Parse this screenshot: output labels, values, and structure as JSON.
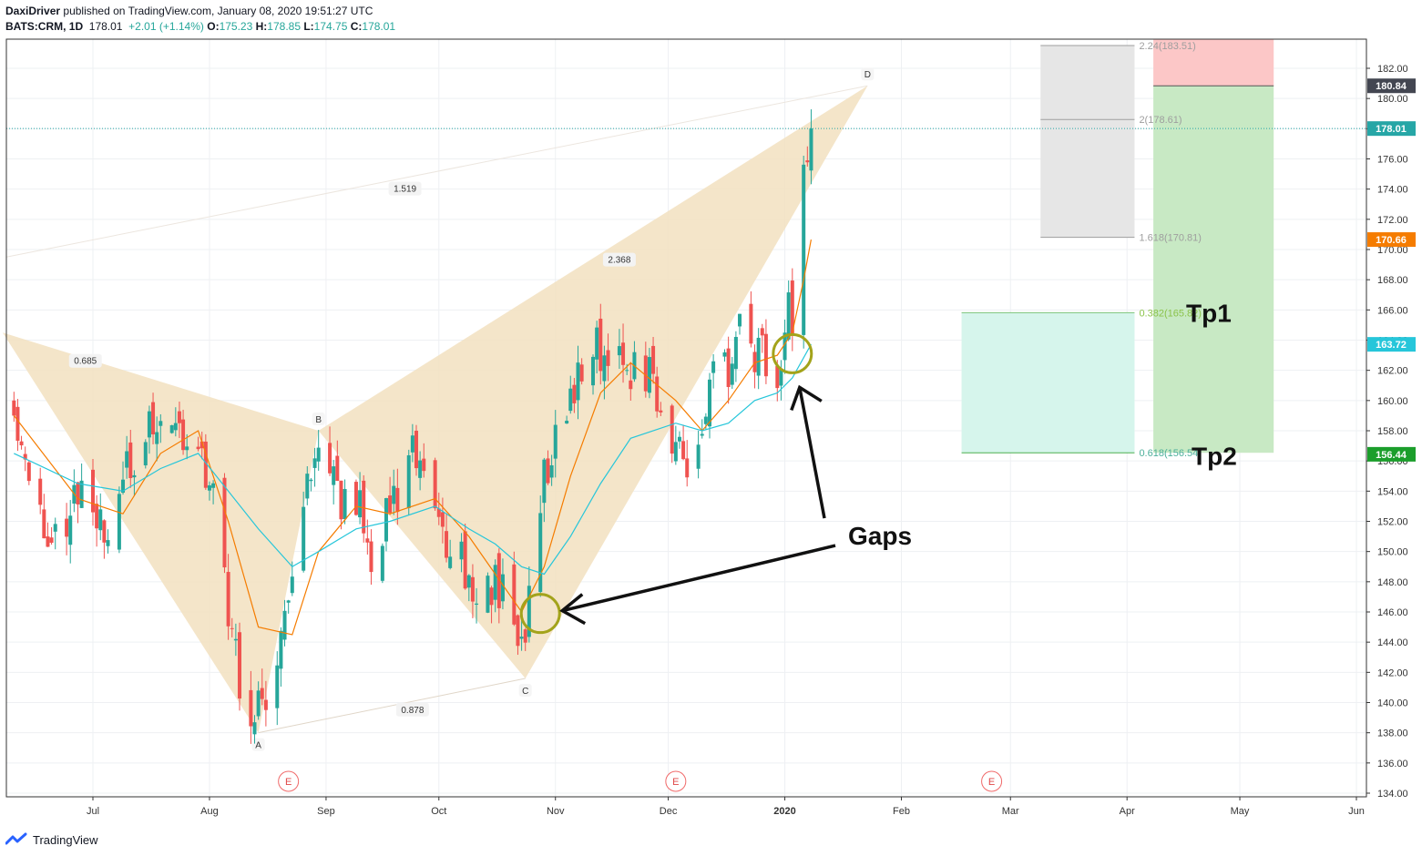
{
  "header": {
    "author": "DaxiDriver",
    "published_text": "published on TradingView.com, January 08, 2020 19:51:27 UTC",
    "symbol": "BATS:CRM, 1D",
    "last": "178.01",
    "change": "+2.01 (+1.14%)",
    "o_label": "O:",
    "o": "175.23",
    "h_label": "H:",
    "h": "178.85",
    "l_label": "L:",
    "l": "174.75",
    "c_label": "C:",
    "c": "178.01"
  },
  "footer": {
    "brand": "TradingView"
  },
  "colors": {
    "up": "#26a69a",
    "down": "#ef5350",
    "ma_fast": "#f57c00",
    "ma_slow": "#26c6da",
    "pattern_fill": "#f2e1c0",
    "grid": "#eef0f3",
    "gap_circle": "#a3a31b"
  },
  "chart_data": {
    "type": "candlestick",
    "symbol": "BATS:CRM",
    "interval": "1D",
    "ylim": [
      134,
      183
    ],
    "y_ticks": [
      134,
      136,
      138,
      140,
      142,
      144,
      146,
      148,
      150,
      152,
      154,
      156,
      158,
      160,
      162,
      164,
      166,
      168,
      170,
      172,
      174,
      176,
      178,
      180,
      182
    ],
    "x_labels": [
      {
        "label": "Jul",
        "date": "2019-07-01"
      },
      {
        "label": "Aug",
        "date": "2019-08-01"
      },
      {
        "label": "Sep",
        "date": "2019-09-01"
      },
      {
        "label": "Oct",
        "date": "2019-10-01"
      },
      {
        "label": "Nov",
        "date": "2019-11-01"
      },
      {
        "label": "Dec",
        "date": "2019-12-01"
      },
      {
        "label": "2020",
        "date": "2020-01-01"
      },
      {
        "label": "Feb",
        "date": "2020-02-01"
      },
      {
        "label": "Mar",
        "date": "2020-03-01"
      },
      {
        "label": "Apr",
        "date": "2020-04-01"
      },
      {
        "label": "May",
        "date": "2020-05-01"
      },
      {
        "label": "Jun",
        "date": "2020-06-01"
      }
    ],
    "close_path": [
      [
        "2019-06-10",
        160.8
      ],
      [
        "2019-06-14",
        153.5
      ],
      [
        "2019-06-20",
        151.0
      ],
      [
        "2019-06-27",
        154.0
      ],
      [
        "2019-07-03",
        151.0
      ],
      [
        "2019-07-09",
        154.5
      ],
      [
        "2019-07-15",
        157.0
      ],
      [
        "2019-07-19",
        159.5
      ],
      [
        "2019-07-24",
        158.0
      ],
      [
        "2019-07-29",
        157.5
      ],
      [
        "2019-08-02",
        153.0
      ],
      [
        "2019-08-06",
        146.0
      ],
      [
        "2019-08-09",
        142.0
      ],
      [
        "2019-08-14",
        139.0
      ],
      [
        "2019-08-19",
        144.0
      ],
      [
        "2019-08-23",
        147.0
      ],
      [
        "2019-08-26",
        154.0
      ],
      [
        "2019-08-30",
        155.5
      ],
      [
        "2019-09-04",
        154.0
      ],
      [
        "2019-09-09",
        153.5
      ],
      [
        "2019-09-13",
        150.0
      ],
      [
        "2019-09-18",
        153.0
      ],
      [
        "2019-09-24",
        156.0
      ],
      [
        "2019-09-30",
        153.0
      ],
      [
        "2019-10-04",
        150.5
      ],
      [
        "2019-10-09",
        149.0
      ],
      [
        "2019-10-11",
        146.0
      ],
      [
        "2019-10-16",
        148.5
      ],
      [
        "2019-10-21",
        146.0
      ],
      [
        "2019-10-23",
        143.0
      ],
      [
        "2019-10-25",
        147.0
      ],
      [
        "2019-10-29",
        155.0
      ],
      [
        "2019-11-01",
        158.0
      ],
      [
        "2019-11-05",
        160.0
      ],
      [
        "2019-11-08",
        163.0
      ],
      [
        "2019-11-13",
        163.5
      ],
      [
        "2019-11-18",
        163.0
      ],
      [
        "2019-11-21",
        162.5
      ],
      [
        "2019-11-26",
        161.5
      ],
      [
        "2019-12-03",
        157.0
      ],
      [
        "2019-12-06",
        156.0
      ],
      [
        "2019-12-10",
        157.0
      ],
      [
        "2019-12-13",
        161.5
      ],
      [
        "2019-12-17",
        162.5
      ],
      [
        "2019-12-20",
        164.0
      ],
      [
        "2019-12-24",
        163.0
      ],
      [
        "2019-12-27",
        163.2
      ],
      [
        "2019-12-30",
        162.5
      ],
      [
        "2020-01-02",
        166.0
      ],
      [
        "2020-01-03",
        165.5
      ],
      [
        "2020-01-06",
        174.0
      ],
      [
        "2020-01-07",
        176.0
      ],
      [
        "2020-01-08",
        178.01
      ]
    ],
    "moving_averages": [
      {
        "values": [
          [
            "2019-06-10",
            159.0
          ],
          [
            "2019-06-27",
            153.5
          ],
          [
            "2019-07-09",
            152.5
          ],
          [
            "2019-07-19",
            156.5
          ],
          [
            "2019-07-29",
            158.0
          ],
          [
            "2019-08-06",
            152.0
          ],
          [
            "2019-08-14",
            145.0
          ],
          [
            "2019-08-23",
            144.5
          ],
          [
            "2019-08-30",
            150.0
          ],
          [
            "2019-09-09",
            153.0
          ],
          [
            "2019-09-18",
            152.5
          ],
          [
            "2019-09-30",
            153.5
          ],
          [
            "2019-10-09",
            151.0
          ],
          [
            "2019-10-16",
            148.5
          ],
          [
            "2019-10-23",
            146.0
          ],
          [
            "2019-10-29",
            149.0
          ],
          [
            "2019-11-05",
            155.0
          ],
          [
            "2019-11-13",
            160.5
          ],
          [
            "2019-11-21",
            162.5
          ],
          [
            "2019-12-03",
            160.0
          ],
          [
            "2019-12-10",
            158.0
          ],
          [
            "2019-12-17",
            160.0
          ],
          [
            "2019-12-24",
            162.5
          ],
          [
            "2019-12-30",
            163.0
          ],
          [
            "2020-01-03",
            164.5
          ],
          [
            "2020-01-06",
            168.0
          ],
          [
            "2020-01-08",
            170.66
          ]
        ]
      },
      {
        "values": [
          [
            "2019-06-10",
            156.5
          ],
          [
            "2019-06-27",
            154.5
          ],
          [
            "2019-07-09",
            154.0
          ],
          [
            "2019-07-19",
            155.5
          ],
          [
            "2019-07-29",
            156.5
          ],
          [
            "2019-08-06",
            154.0
          ],
          [
            "2019-08-14",
            151.5
          ],
          [
            "2019-08-23",
            149.0
          ],
          [
            "2019-08-30",
            150.0
          ],
          [
            "2019-09-09",
            151.5
          ],
          [
            "2019-09-18",
            152.0
          ],
          [
            "2019-09-30",
            153.0
          ],
          [
            "2019-10-09",
            151.5
          ],
          [
            "2019-10-16",
            150.5
          ],
          [
            "2019-10-23",
            149.0
          ],
          [
            "2019-10-29",
            148.5
          ],
          [
            "2019-11-05",
            151.0
          ],
          [
            "2019-11-13",
            154.5
          ],
          [
            "2019-11-21",
            157.5
          ],
          [
            "2019-12-03",
            158.5
          ],
          [
            "2019-12-10",
            158.0
          ],
          [
            "2019-12-17",
            158.5
          ],
          [
            "2019-12-24",
            160.0
          ],
          [
            "2019-12-30",
            160.5
          ],
          [
            "2020-01-03",
            161.5
          ],
          [
            "2020-01-08",
            163.72
          ]
        ]
      }
    ],
    "pattern": {
      "points": [
        {
          "label": "",
          "date": "2019-06-07",
          "price": 164.5
        },
        {
          "label": "A",
          "date": "2019-08-14",
          "price": 138.0
        },
        {
          "label": "B",
          "date": "2019-08-30",
          "price": 158.0
        },
        {
          "label": "C",
          "date": "2019-10-24",
          "price": 141.6
        },
        {
          "label": "D",
          "date": "2020-01-23",
          "price": 180.84
        }
      ],
      "ratios": [
        {
          "value": "0.685",
          "date": "2019-06-29",
          "price": 162.6
        },
        {
          "value": "0.878",
          "date": "2019-09-24",
          "price": 139.5
        },
        {
          "value": "2.368",
          "date": "2019-11-18",
          "price": 169.3
        },
        {
          "value": "1.519",
          "date": "2019-09-22",
          "price": 174.0
        }
      ]
    },
    "fib_levels": [
      {
        "label": "2.24(183.51)",
        "value": 183.51
      },
      {
        "label": "2(178.61)",
        "value": 178.61
      },
      {
        "label": "1.618(170.81)",
        "value": 170.81
      },
      {
        "label": "0.382(165.82)",
        "value": 165.82
      },
      {
        "label": "0.618(156.54)",
        "value": 156.54
      }
    ],
    "price_badges": [
      {
        "value": "180.84"
      },
      {
        "value": "178.01"
      },
      {
        "value": "170.66"
      },
      {
        "value": "163.72"
      },
      {
        "value": "156.44"
      }
    ],
    "annotations": [
      {
        "text": "Tp1",
        "price": 165.8
      },
      {
        "text": "Tp2",
        "price": 156.4
      },
      {
        "text": "Gaps",
        "price": 151.0
      }
    ],
    "earnings_marker": "E",
    "earnings_dates": [
      "2019-08-22",
      "2019-12-03",
      "2020-02-25"
    ],
    "gap_circles": [
      {
        "date": "2019-10-28",
        "price": 145.9
      },
      {
        "date": "2020-01-03",
        "price": 163.1
      }
    ]
  }
}
